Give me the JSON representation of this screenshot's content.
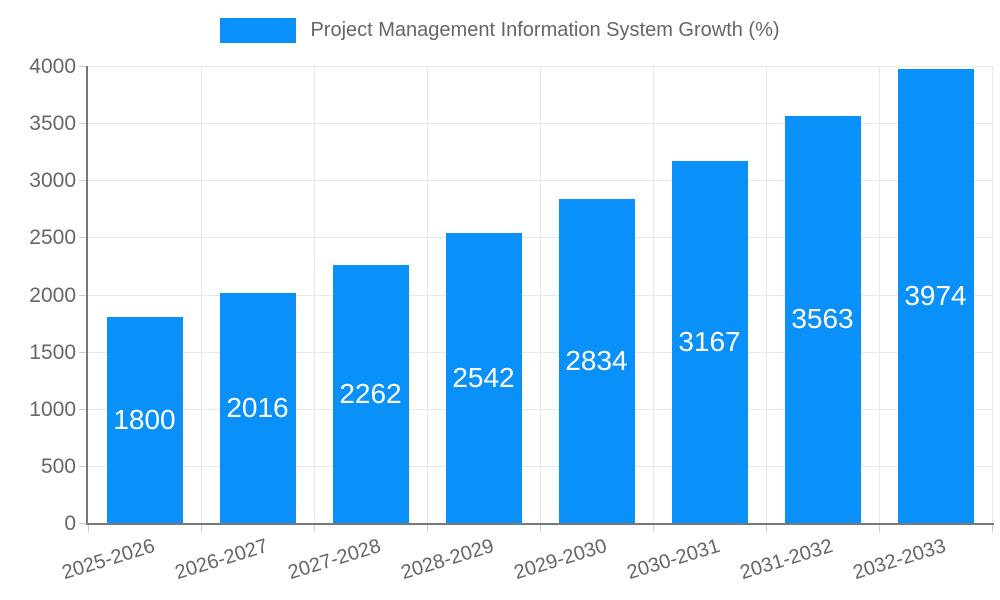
{
  "chart_data": {
    "type": "bar",
    "title": "Project Management Information System Growth (%)",
    "categories": [
      "2025-2026",
      "2026-2027",
      "2027-2028",
      "2028-2029",
      "2029-2030",
      "2030-2031",
      "2031-2032",
      "2032-2033"
    ],
    "values": [
      1800,
      2016,
      2262,
      2542,
      2834,
      3167,
      3563,
      3974
    ],
    "ylim": [
      0,
      4000
    ],
    "yticks": [
      0,
      500,
      1000,
      1500,
      2000,
      2500,
      3000,
      3500,
      4000
    ],
    "xlabel": "",
    "ylabel": "",
    "legend_position": "top",
    "grid": true,
    "bar_color": "#0a91f9",
    "value_label_color": "#ffffff",
    "axis_text_color": "#666666",
    "gridline_color": "#e8e8e8",
    "axis_line_color": "#787878"
  }
}
